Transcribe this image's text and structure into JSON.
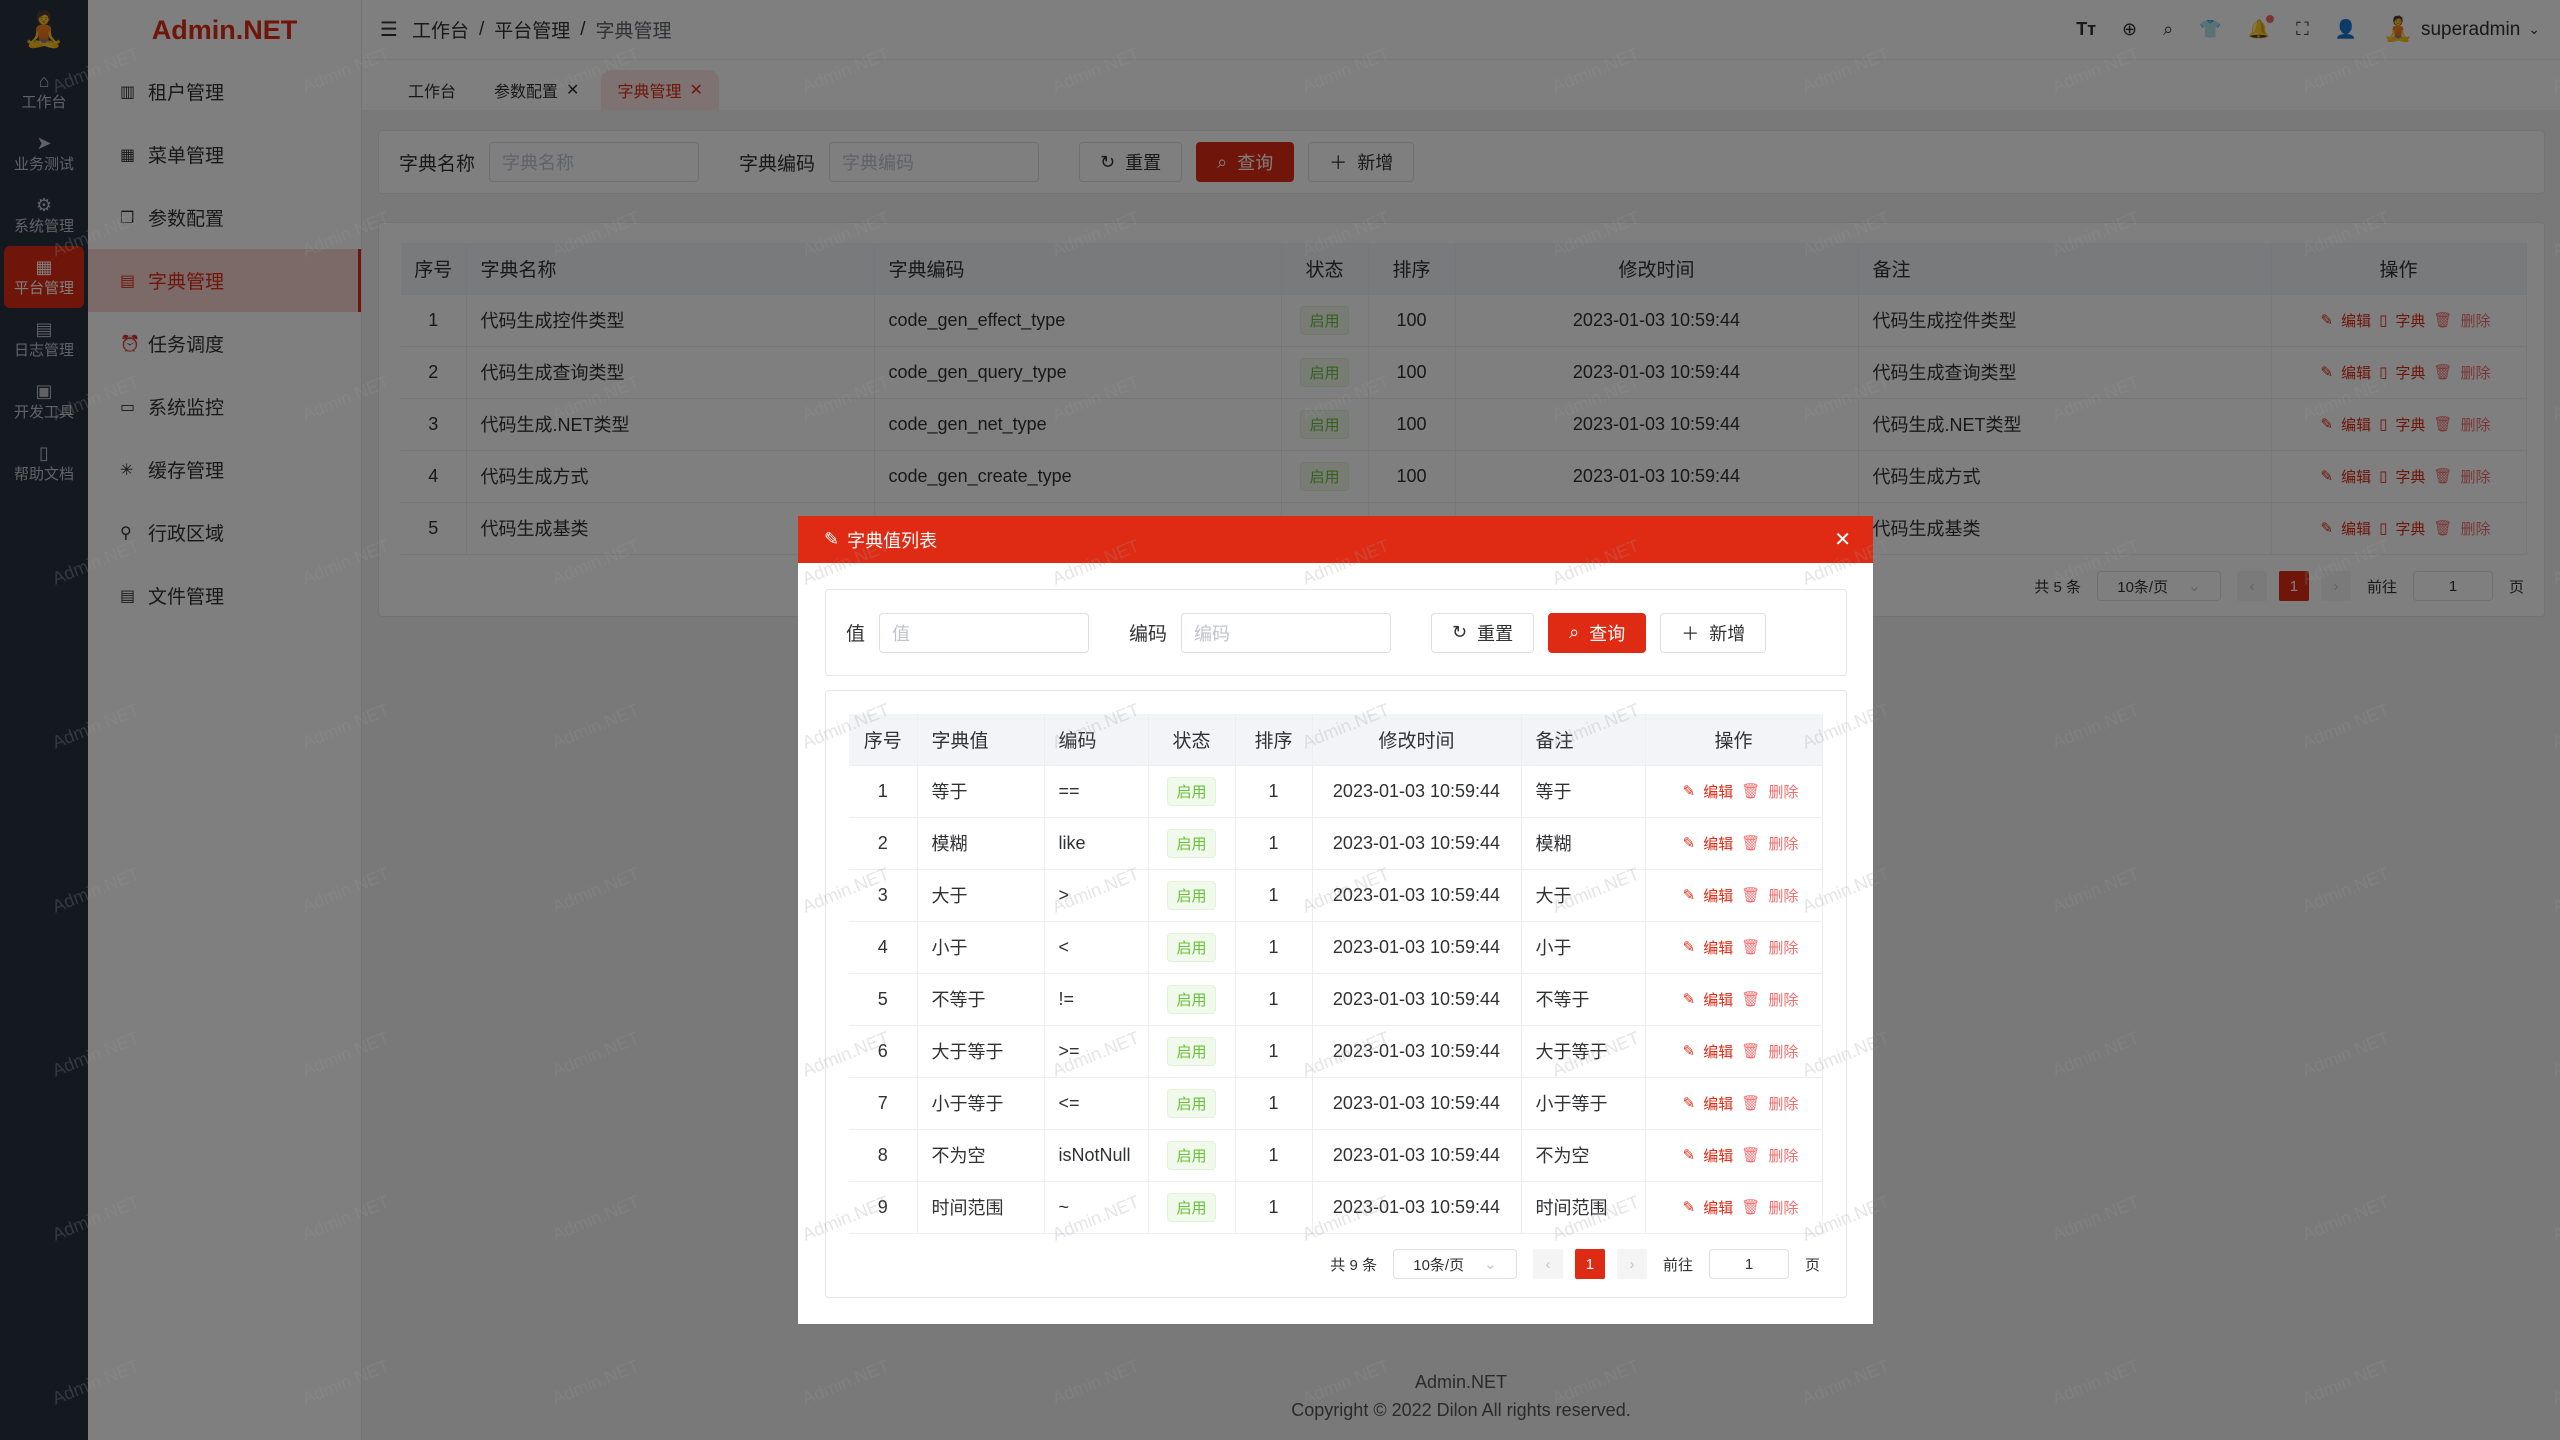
{
  "colors": {
    "primary": "#df2b14",
    "success": "#67c23a"
  },
  "rail": {
    "items": [
      {
        "label": "工作台",
        "icon": "home-icon"
      },
      {
        "label": "业务测试",
        "icon": "send-icon"
      },
      {
        "label": "系统管理",
        "icon": "gear-icon"
      },
      {
        "label": "平台管理",
        "icon": "grid-icon",
        "active": true
      },
      {
        "label": "日志管理",
        "icon": "log-icon"
      },
      {
        "label": "开发工具",
        "icon": "chip-icon"
      },
      {
        "label": "帮助文档",
        "icon": "book-icon"
      }
    ]
  },
  "sidebar": {
    "brand": "Admin.NET",
    "items": [
      {
        "label": "租户管理",
        "icon": "building-icon"
      },
      {
        "label": "菜单管理",
        "icon": "menu-grid-icon"
      },
      {
        "label": "参数配置",
        "icon": "copy-icon"
      },
      {
        "label": "字典管理",
        "icon": "dictionary-icon",
        "active": true
      },
      {
        "label": "任务调度",
        "icon": "alarm-icon"
      },
      {
        "label": "系统监控",
        "icon": "monitor-icon"
      },
      {
        "label": "缓存管理",
        "icon": "loading-icon"
      },
      {
        "label": "行政区域",
        "icon": "location-icon"
      },
      {
        "label": "文件管理",
        "icon": "document-icon"
      }
    ]
  },
  "header": {
    "breadcrumb": [
      "工作台",
      "平台管理",
      "字典管理"
    ],
    "username": "superadmin"
  },
  "tabs": [
    {
      "label": "工作台"
    },
    {
      "label": "参数配置",
      "closable": true
    },
    {
      "label": "字典管理",
      "closable": true,
      "active": true
    }
  ],
  "search": {
    "name_label": "字典名称",
    "name_placeholder": "字典名称",
    "code_label": "字典编码",
    "code_placeholder": "字典编码",
    "reset": "重置",
    "query": "查询",
    "add": "新增"
  },
  "dict_table": {
    "columns": [
      "序号",
      "字典名称",
      "字典编码",
      "状态",
      "排序",
      "修改时间",
      "备注",
      "操作"
    ],
    "rows": [
      [
        "1",
        "代码生成控件类型",
        "code_gen_effect_type",
        "启用",
        "100",
        "2023-01-03 10:59:44",
        "代码生成控件类型"
      ],
      [
        "2",
        "代码生成查询类型",
        "code_gen_query_type",
        "启用",
        "100",
        "2023-01-03 10:59:44",
        "代码生成查询类型"
      ],
      [
        "3",
        "代码生成.NET类型",
        "code_gen_net_type",
        "启用",
        "100",
        "2023-01-03 10:59:44",
        "代码生成.NET类型"
      ],
      [
        "4",
        "代码生成方式",
        "code_gen_create_type",
        "启用",
        "100",
        "2023-01-03 10:59:44",
        "代码生成方式"
      ],
      [
        "5",
        "代码生成基类",
        "",
        "",
        "",
        "",
        "代码生成基类"
      ]
    ],
    "actions": {
      "edit": "编辑",
      "dict": "字典",
      "delete": "删除"
    },
    "pager": {
      "total": "共 5 条",
      "page_size": "10条/页",
      "page": "1",
      "goto": "前往",
      "goto_value": "1",
      "page_suffix": "页"
    }
  },
  "dialog": {
    "title": "字典值列表",
    "search": {
      "value_label": "值",
      "value_placeholder": "值",
      "code_label": "编码",
      "code_placeholder": "编码",
      "reset": "重置",
      "query": "查询",
      "add": "新增"
    },
    "columns": [
      "序号",
      "字典值",
      "编码",
      "状态",
      "排序",
      "修改时间",
      "备注",
      "操作"
    ],
    "rows": [
      [
        "1",
        "等于",
        "==",
        "启用",
        "1",
        "2023-01-03 10:59:44",
        "等于"
      ],
      [
        "2",
        "模糊",
        "like",
        "启用",
        "1",
        "2023-01-03 10:59:44",
        "模糊"
      ],
      [
        "3",
        "大于",
        ">",
        "启用",
        "1",
        "2023-01-03 10:59:44",
        "大于"
      ],
      [
        "4",
        "小于",
        "<",
        "启用",
        "1",
        "2023-01-03 10:59:44",
        "小于"
      ],
      [
        "5",
        "不等于",
        "!=",
        "启用",
        "1",
        "2023-01-03 10:59:44",
        "不等于"
      ],
      [
        "6",
        "大于等于",
        ">=",
        "启用",
        "1",
        "2023-01-03 10:59:44",
        "大于等于"
      ],
      [
        "7",
        "小于等于",
        "<=",
        "启用",
        "1",
        "2023-01-03 10:59:44",
        "小于等于"
      ],
      [
        "8",
        "不为空",
        "isNotNull",
        "启用",
        "1",
        "2023-01-03 10:59:44",
        "不为空"
      ],
      [
        "9",
        "时间范围",
        "~",
        "启用",
        "1",
        "2023-01-03 10:59:44",
        "时间范围"
      ]
    ],
    "actions": {
      "edit": "编辑",
      "delete": "删除"
    },
    "pager": {
      "total": "共 9 条",
      "page_size": "10条/页",
      "page": "1",
      "goto": "前往",
      "goto_value": "1",
      "page_suffix": "页"
    }
  },
  "footer": {
    "name": "Admin.NET",
    "copyright": "Copyright © 2022 Dilon All rights reserved."
  },
  "watermark": "Admin.NET"
}
